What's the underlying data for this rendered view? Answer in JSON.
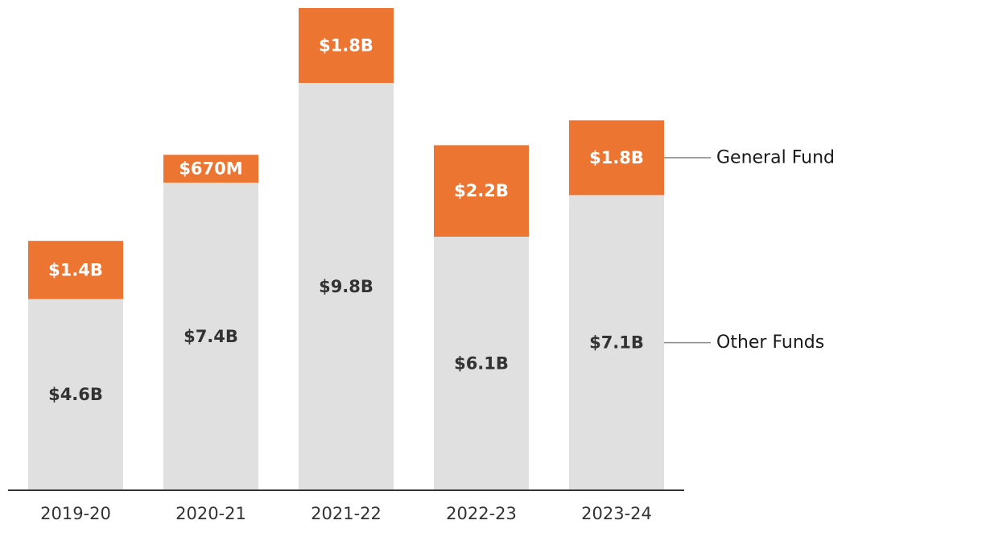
{
  "chart_data": {
    "type": "bar",
    "stacked": true,
    "title": "",
    "xlabel": "",
    "ylabel": "",
    "categories": [
      "2019-20",
      "2020-21",
      "2021-22",
      "2022-23",
      "2023-24"
    ],
    "series": [
      {
        "name": "Other Funds",
        "color": "#e0e0e0",
        "label_color": "#333333",
        "values": [
          4.6,
          7.4,
          9.8,
          6.1,
          7.1
        ],
        "labels": [
          "$4.6B",
          "$7.4B",
          "$9.8B",
          "$6.1B",
          "$7.1B"
        ]
      },
      {
        "name": "General Fund",
        "color": "#ec7532",
        "label_color": "#ffffff",
        "values": [
          1.4,
          0.67,
          1.8,
          2.2,
          1.8
        ],
        "labels": [
          "$1.4B",
          "$670M",
          "$1.8B",
          "$2.2B",
          "$1.8B"
        ]
      }
    ],
    "units": "billions of dollars",
    "ylim": [
      0,
      11.6
    ],
    "grid": false,
    "y_axis_visible": false,
    "legend": "right, leader lines to last bar"
  }
}
